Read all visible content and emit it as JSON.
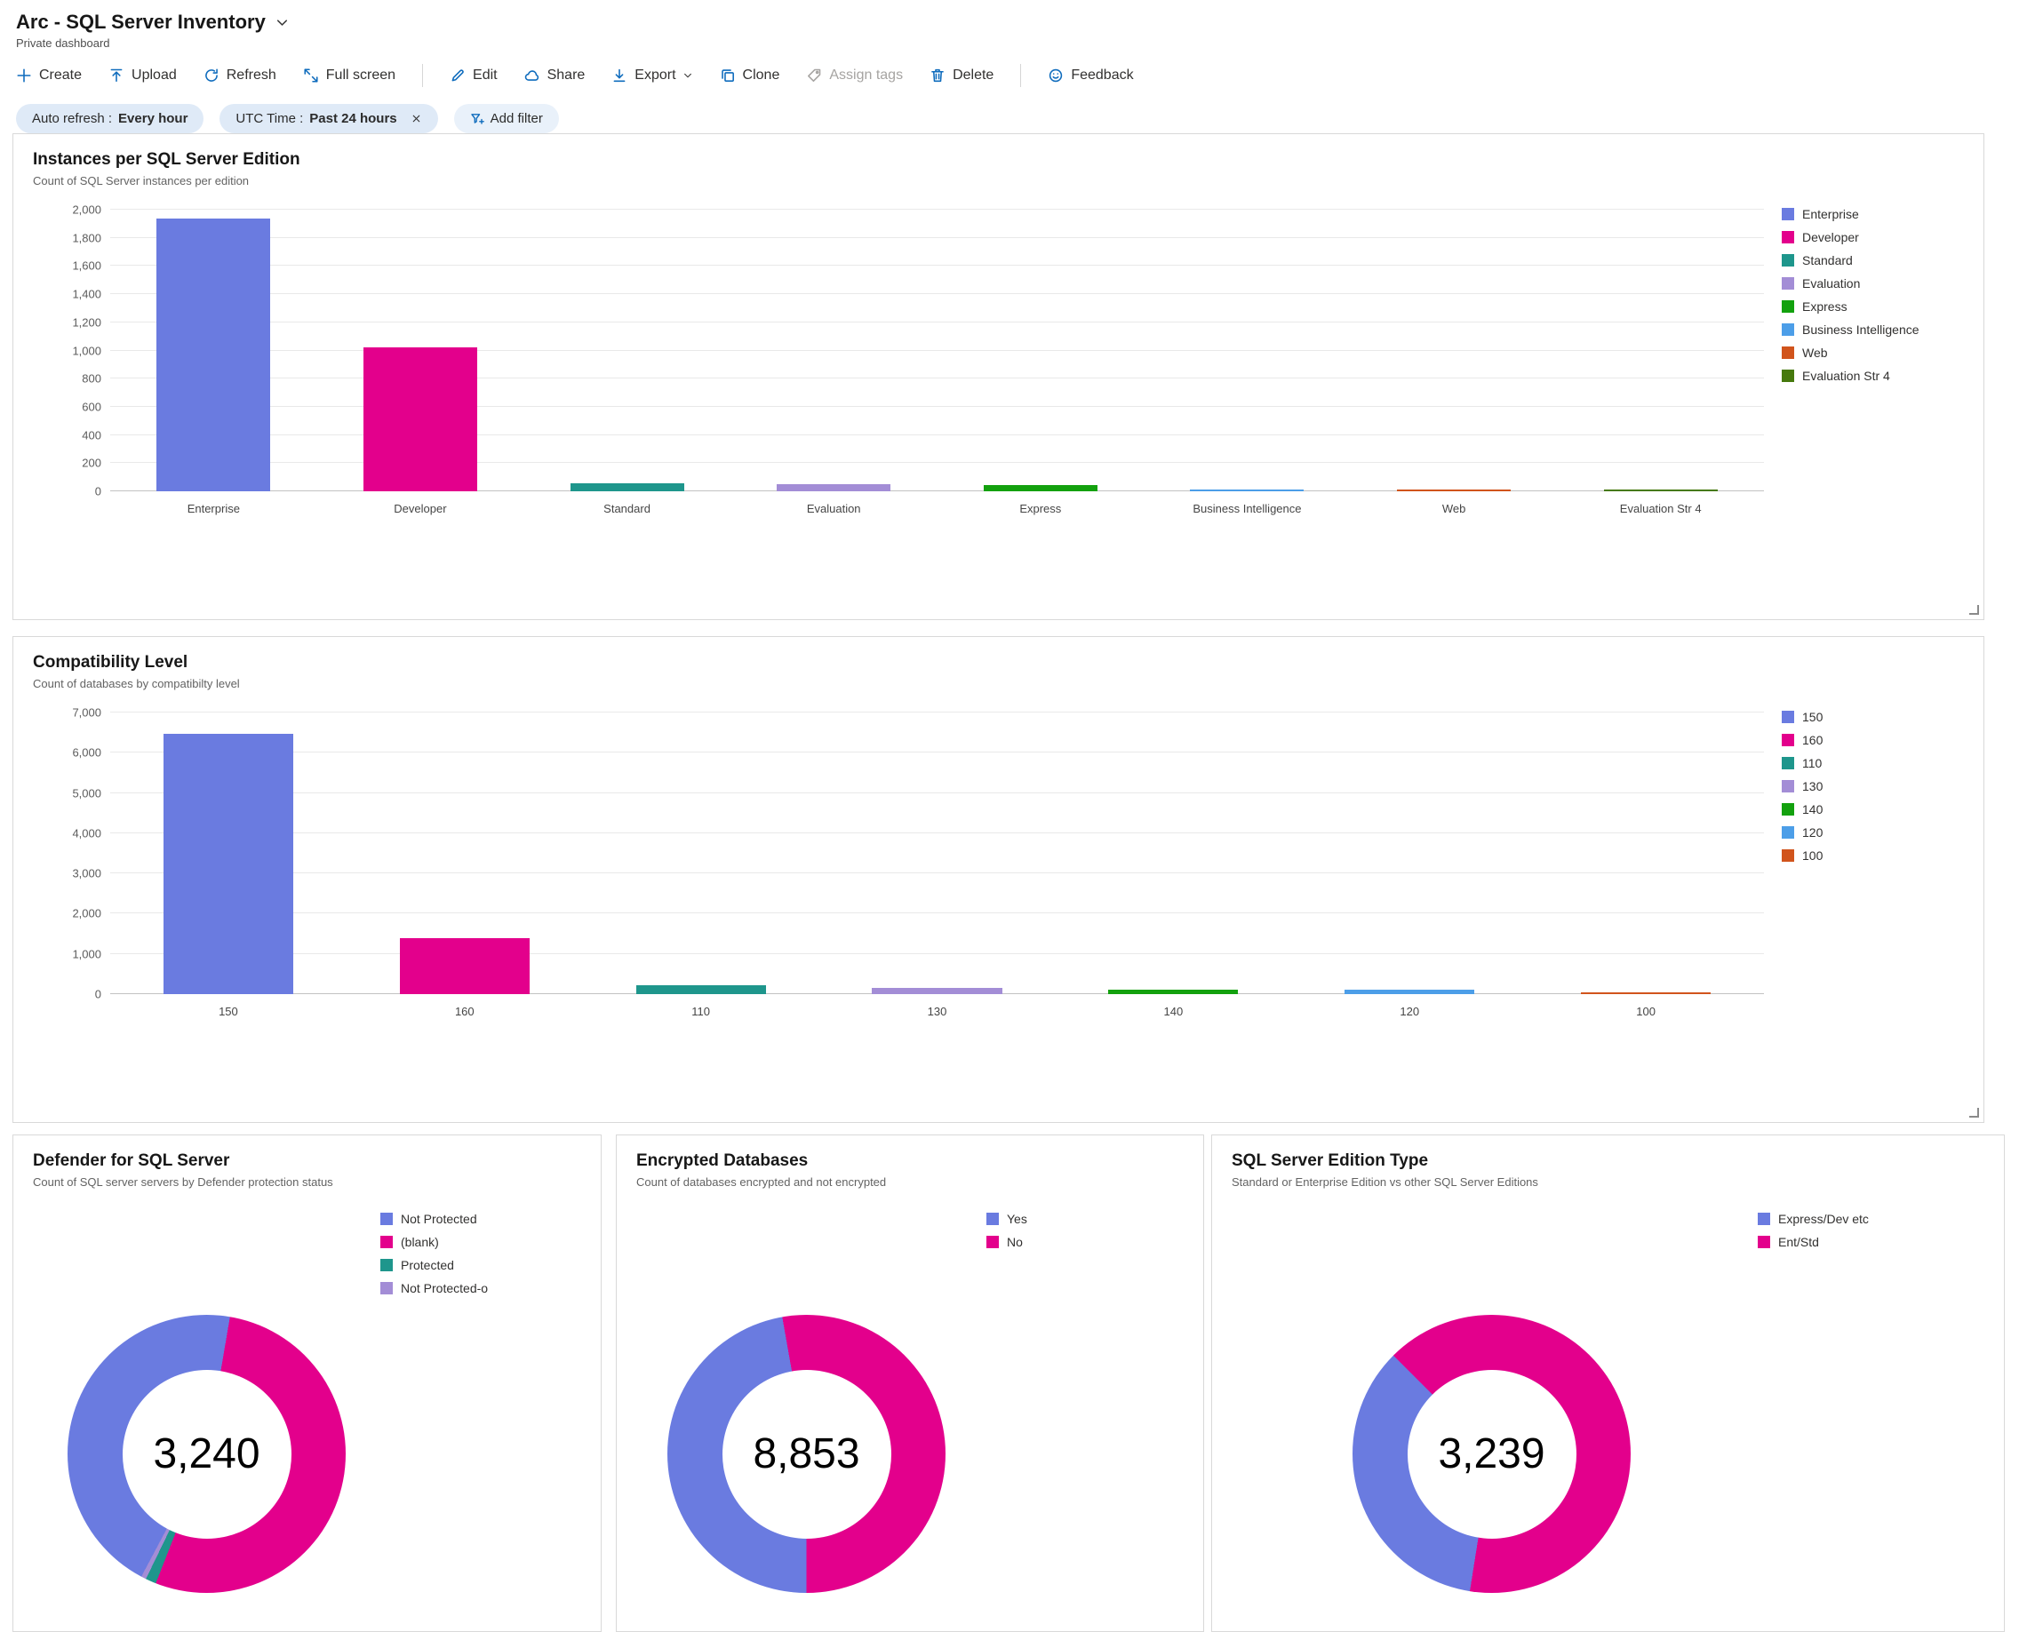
{
  "header": {
    "title": "Arc - SQL Server Inventory",
    "subtitle": "Private dashboard"
  },
  "toolbar": {
    "items": [
      {
        "label": "Create",
        "icon": "plus-icon",
        "disabled": false
      },
      {
        "label": "Upload",
        "icon": "upload-icon",
        "disabled": false
      },
      {
        "label": "Refresh",
        "icon": "refresh-icon",
        "disabled": false
      },
      {
        "label": "Full screen",
        "icon": "fullscreen-icon",
        "disabled": false,
        "separator_after": true
      },
      {
        "label": "Edit",
        "icon": "edit-icon",
        "disabled": false
      },
      {
        "label": "Share",
        "icon": "share-icon",
        "disabled": false
      },
      {
        "label": "Export",
        "icon": "export-icon",
        "disabled": false,
        "has_chevron": true
      },
      {
        "label": "Clone",
        "icon": "clone-icon",
        "disabled": false
      },
      {
        "label": "Assign tags",
        "icon": "tag-icon",
        "disabled": true
      },
      {
        "label": "Delete",
        "icon": "trash-icon",
        "disabled": false,
        "separator_after": true
      },
      {
        "label": "Feedback",
        "icon": "feedback-icon",
        "disabled": false
      }
    ]
  },
  "filters": {
    "auto_refresh": {
      "label": "Auto refresh :",
      "value": "Every hour"
    },
    "utc_time": {
      "label": "UTC Time :",
      "value": "Past 24 hours"
    },
    "add_filter_label": "Add filter"
  },
  "colors": {
    "accent_blue": "#0f6cbd",
    "series_blue": "#6a7be0",
    "series_magenta": "#e3008c",
    "series_teal": "#1e968c",
    "series_purple": "#a38dd6",
    "series_green": "#13a10e",
    "series_lightblue": "#4c9ee8",
    "series_orange": "#d1541c",
    "series_darkgreen": "#46790d"
  },
  "chart_data": [
    {
      "type": "bar",
      "title": "Instances per SQL Server Edition",
      "subtitle": "Count of SQL Server instances per edition",
      "categories": [
        "Enterprise",
        "Developer",
        "Standard",
        "Evaluation",
        "Express",
        "Business Intelligence",
        "Web",
        "Evaluation Str 4"
      ],
      "values": [
        1940,
        1020,
        60,
        50,
        45,
        10,
        6,
        4
      ],
      "colors": [
        "#6a7be0",
        "#e3008c",
        "#1e968c",
        "#a38dd6",
        "#13a10e",
        "#4c9ee8",
        "#d1541c",
        "#46790d"
      ],
      "legend": [
        "Enterprise",
        "Developer",
        "Standard",
        "Evaluation",
        "Express",
        "Business Intelligence",
        "Web",
        "Evaluation Str 4"
      ],
      "xlabel": "",
      "ylabel": "",
      "ylim": [
        0,
        2000
      ],
      "ytick_step": 200,
      "grid": true,
      "legend_position": "right"
    },
    {
      "type": "bar",
      "title": "Compatibility Level",
      "subtitle": "Count of databases by compatibilty level",
      "categories": [
        "150",
        "160",
        "110",
        "130",
        "140",
        "120",
        "100"
      ],
      "values": [
        6480,
        1400,
        230,
        150,
        120,
        110,
        40
      ],
      "colors": [
        "#6a7be0",
        "#e3008c",
        "#1e968c",
        "#a38dd6",
        "#13a10e",
        "#4c9ee8",
        "#d1541c"
      ],
      "legend": [
        "150",
        "160",
        "110",
        "130",
        "140",
        "120",
        "100"
      ],
      "xlabel": "",
      "ylabel": "",
      "ylim": [
        0,
        7000
      ],
      "ytick_step": 1000,
      "grid": true,
      "legend_position": "right"
    },
    {
      "type": "donut",
      "title": "Defender for SQL Server",
      "subtitle": "Count of SQL server servers by Defender protection status",
      "center_value": "3,240",
      "total": 3240,
      "start_angle": 208,
      "legend_position": "right",
      "segments": [
        {
          "label": "Not Protected",
          "value": 1455,
          "color": "#6a7be0"
        },
        {
          "label": "(blank)",
          "value": 1726,
          "color": "#e3008c"
        },
        {
          "label": "Protected",
          "value": 40,
          "color": "#1e968c"
        },
        {
          "label": "Not Protected-o",
          "value": 19,
          "color": "#a38dd6"
        }
      ]
    },
    {
      "type": "donut",
      "title": "Encrypted Databases",
      "subtitle": "Count of databases encrypted and not encrypted",
      "center_value": "8,853",
      "total": 8853,
      "start_angle": 180,
      "legend_position": "right",
      "segments": [
        {
          "label": "Yes",
          "value": 4180,
          "color": "#6a7be0"
        },
        {
          "label": "No",
          "value": 4673,
          "color": "#e3008c"
        }
      ]
    },
    {
      "type": "donut",
      "title": "SQL Server Edition Type",
      "subtitle": "Standard or Enterprise Edition vs other SQL Server Editions",
      "center_value": "3,239",
      "total": 3239,
      "start_angle": 189,
      "legend_position": "right",
      "segments": [
        {
          "label": "Express/Dev etc",
          "value": 1134,
          "color": "#6a7be0"
        },
        {
          "label": "Ent/Std",
          "value": 2105,
          "color": "#e3008c"
        }
      ]
    }
  ]
}
